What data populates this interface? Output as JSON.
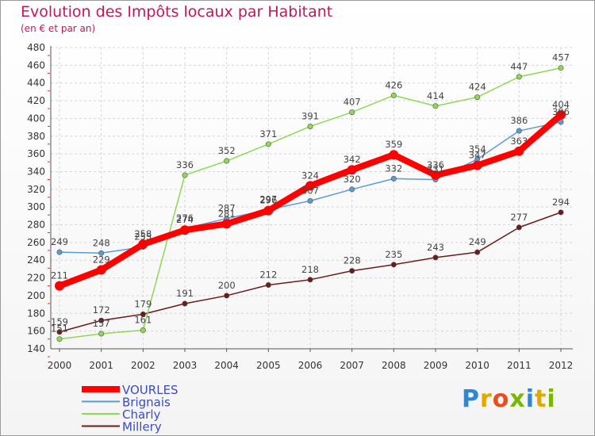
{
  "chart_data": {
    "type": "line",
    "title": "Evolution des Impôts locaux par Habitant",
    "subtitle": "(en € et par an)",
    "x": [
      "2000",
      "2001",
      "2002",
      "2003",
      "2004",
      "2005",
      "2006",
      "2007",
      "2008",
      "2009",
      "2010",
      "2011",
      "2012"
    ],
    "yticks": [
      140,
      160,
      180,
      200,
      220,
      240,
      260,
      280,
      300,
      320,
      340,
      360,
      380,
      400,
      420,
      440,
      460,
      480
    ],
    "ylim": [
      140,
      480
    ],
    "grid": true,
    "legend_position": "bottom-left",
    "series": [
      {
        "name": "VOURLES",
        "color": "#ff0000",
        "values": [
          211,
          229,
          258,
          274,
          281,
          296,
          324,
          342,
          359,
          336,
          347,
          363,
          404
        ]
      },
      {
        "name": "Brignais",
        "color": "#5b9bd5",
        "values": [
          249,
          248,
          255,
          276,
          287,
          297,
          307,
          320,
          332,
          331,
          354,
          386,
          396
        ]
      },
      {
        "name": "Charly",
        "color": "#8ed854",
        "values": [
          151,
          157,
          161,
          336,
          352,
          371,
          391,
          407,
          426,
          414,
          424,
          447,
          457
        ]
      },
      {
        "name": "Millery",
        "color": "#6b1b1b",
        "values": [
          159,
          172,
          179,
          191,
          200,
          212,
          218,
          228,
          235,
          243,
          249,
          277,
          294
        ]
      }
    ]
  },
  "logo": {
    "text": "Proxiti"
  }
}
